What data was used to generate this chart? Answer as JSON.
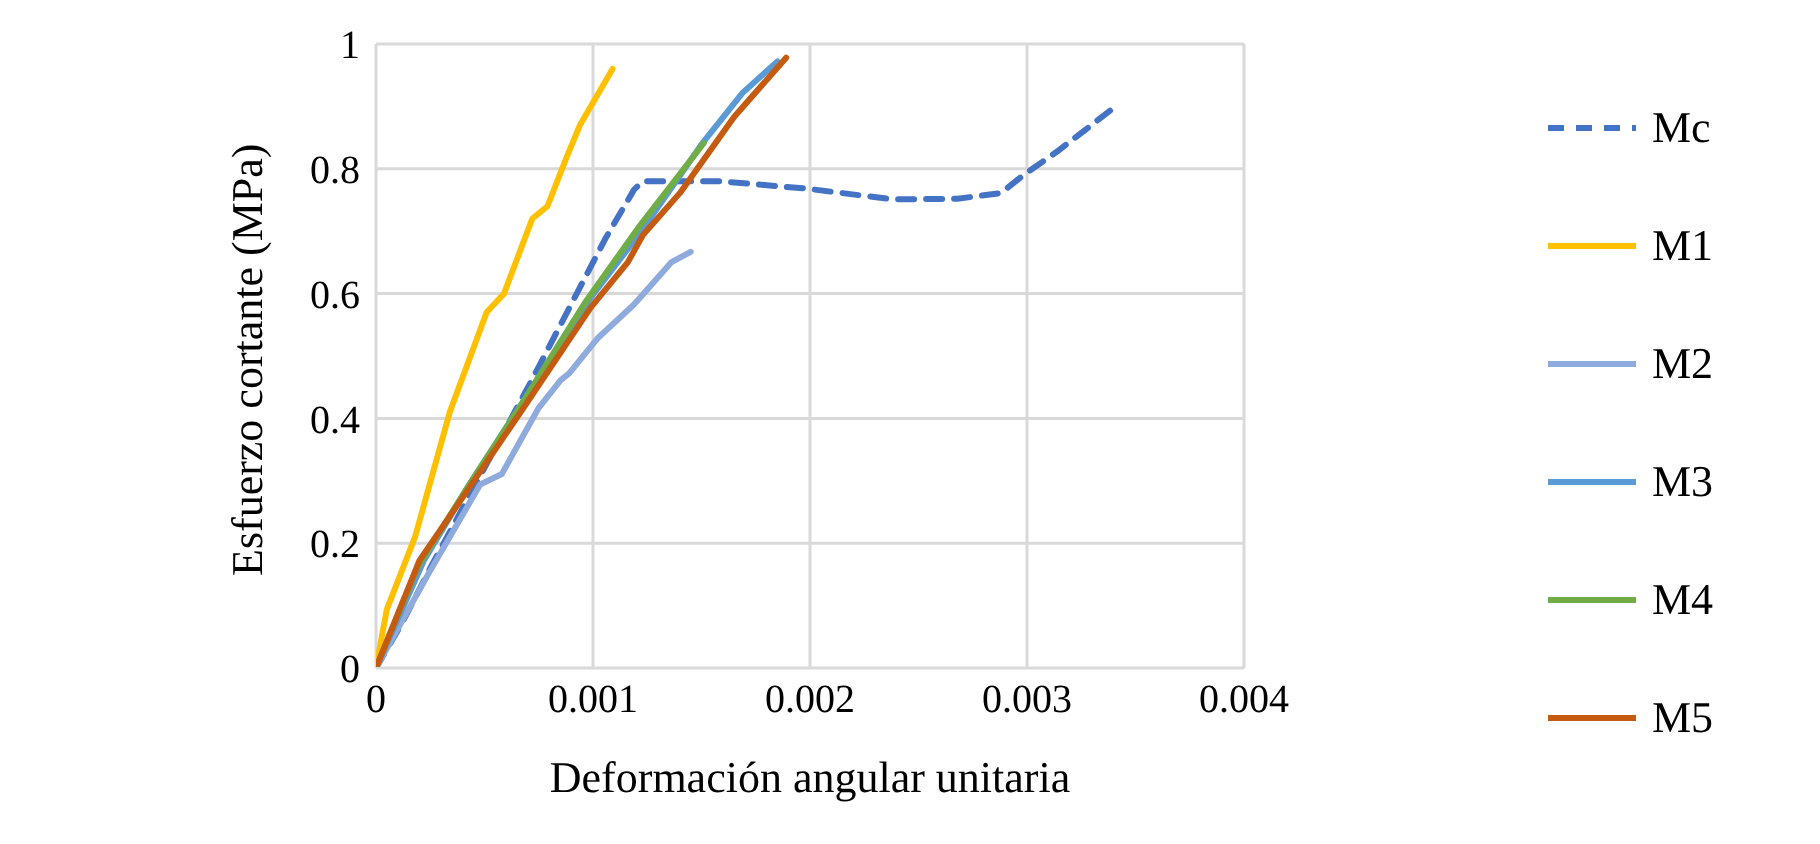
{
  "chart_data": {
    "type": "line",
    "xlabel": "Deformación angular unitaria",
    "ylabel": "Esfuerzo cortante (MPa)",
    "xlim": [
      0,
      0.004
    ],
    "xticks": [
      0,
      0.001,
      0.002,
      0.003,
      0.004
    ],
    "ylim": [
      0,
      1
    ],
    "yticks": [
      0,
      0.2,
      0.4,
      0.6,
      0.8,
      1
    ],
    "grid": true,
    "legend": "right",
    "marker": "none",
    "series": [
      {
        "name": "Mc",
        "color": "#4472c4",
        "line_style": "dashed",
        "x": [
          0,
          0.00012,
          0.00025,
          0.00071,
          0.00094,
          0.00106,
          0.00119,
          0.00123,
          0.00159,
          0.00199,
          0.00238,
          0.00268,
          0.00288,
          0.00298,
          0.00314,
          0.00339
        ],
        "values": [
          0,
          0.072,
          0.16,
          0.456,
          0.61,
          0.69,
          0.767,
          0.78,
          0.78,
          0.768,
          0.751,
          0.752,
          0.761,
          0.789,
          0.828,
          0.895
        ]
      },
      {
        "name": "M1",
        "color": "#ffc000",
        "line_style": "solid",
        "x": [
          0,
          5e-05,
          0.00018,
          0.00034,
          0.00051,
          0.00059,
          0.00072,
          0.00079,
          0.00088,
          0.00094,
          0.00109
        ],
        "values": [
          0,
          0.094,
          0.21,
          0.41,
          0.57,
          0.6,
          0.72,
          0.74,
          0.82,
          0.87,
          0.96
        ]
      },
      {
        "name": "M2",
        "color": "#8faadc",
        "line_style": "solid",
        "x": [
          0,
          0.00024,
          0.00048,
          0.00058,
          0.00075,
          0.00085,
          0.00089,
          0.00102,
          0.00119,
          0.00136,
          0.00145
        ],
        "values": [
          0,
          0.15,
          0.294,
          0.311,
          0.417,
          0.461,
          0.472,
          0.528,
          0.583,
          0.65,
          0.667
        ]
      },
      {
        "name": "M3",
        "color": "#5b9bd5",
        "line_style": "solid",
        "x": [
          0,
          0.00022,
          0.00043,
          0.00068,
          0.00099,
          0.00121,
          0.0015,
          0.00169,
          0.00185
        ],
        "values": [
          0,
          0.172,
          0.294,
          0.428,
          0.594,
          0.694,
          0.839,
          0.922,
          0.972
        ]
      },
      {
        "name": "M4",
        "color": "#70ad47",
        "line_style": "solid",
        "x": [
          0,
          0.00019,
          0.00043,
          0.00068,
          0.00097,
          0.00121,
          0.00151
        ],
        "values": [
          0,
          0.161,
          0.294,
          0.428,
          0.589,
          0.706,
          0.841
        ]
      },
      {
        "name": "M5",
        "color": "#c55a11",
        "line_style": "solid",
        "x": [
          0,
          0.0002,
          0.00043,
          0.00068,
          0.00099,
          0.00116,
          0.00123,
          0.0014,
          0.00165,
          0.00189
        ],
        "values": [
          0,
          0.172,
          0.289,
          0.417,
          0.578,
          0.65,
          0.694,
          0.761,
          0.883,
          0.978
        ]
      }
    ]
  }
}
